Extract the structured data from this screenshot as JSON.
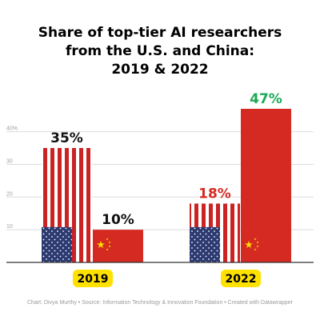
{
  "title_lines": [
    "Share of top-tier AI researchers",
    "from the U.S. and China:",
    "2019 & 2022"
  ],
  "footer": "Chart: Divya Murthy • Source: Information Technology & Innovation Foundation • Created with Datawrapper",
  "colors": {
    "us_red": "#cc2222",
    "us_blue": "#2c3a72",
    "china_red": "#d42a21",
    "china_star": "#ffde00",
    "year_badge": "#ffe100",
    "green_label": "#1aaa55",
    "red_label": "#d42a21",
    "black_label": "#111111",
    "grid": "#dddddd",
    "axis": "#333333",
    "tick_text": "#a0a0a0"
  },
  "chart_data": {
    "type": "bar",
    "title": "Share of top-tier AI researchers from the U.S. and China: 2019 & 2022",
    "categories": [
      "2019",
      "2022"
    ],
    "series": [
      {
        "name": "U.S.",
        "values": [
          35,
          18
        ]
      },
      {
        "name": "China",
        "values": [
          10,
          47
        ]
      }
    ],
    "value_labels": [
      [
        "35%",
        "10%"
      ],
      [
        "18%",
        "47%"
      ]
    ],
    "label_colors": [
      [
        "black",
        "black"
      ],
      [
        "red",
        "green"
      ]
    ],
    "ylim": [
      0,
      47
    ],
    "yticks": [
      0,
      10,
      20,
      30,
      40
    ],
    "ytick_labels": [
      "",
      "10",
      "20",
      "30",
      "40%"
    ],
    "grid": true,
    "legend": "none"
  }
}
